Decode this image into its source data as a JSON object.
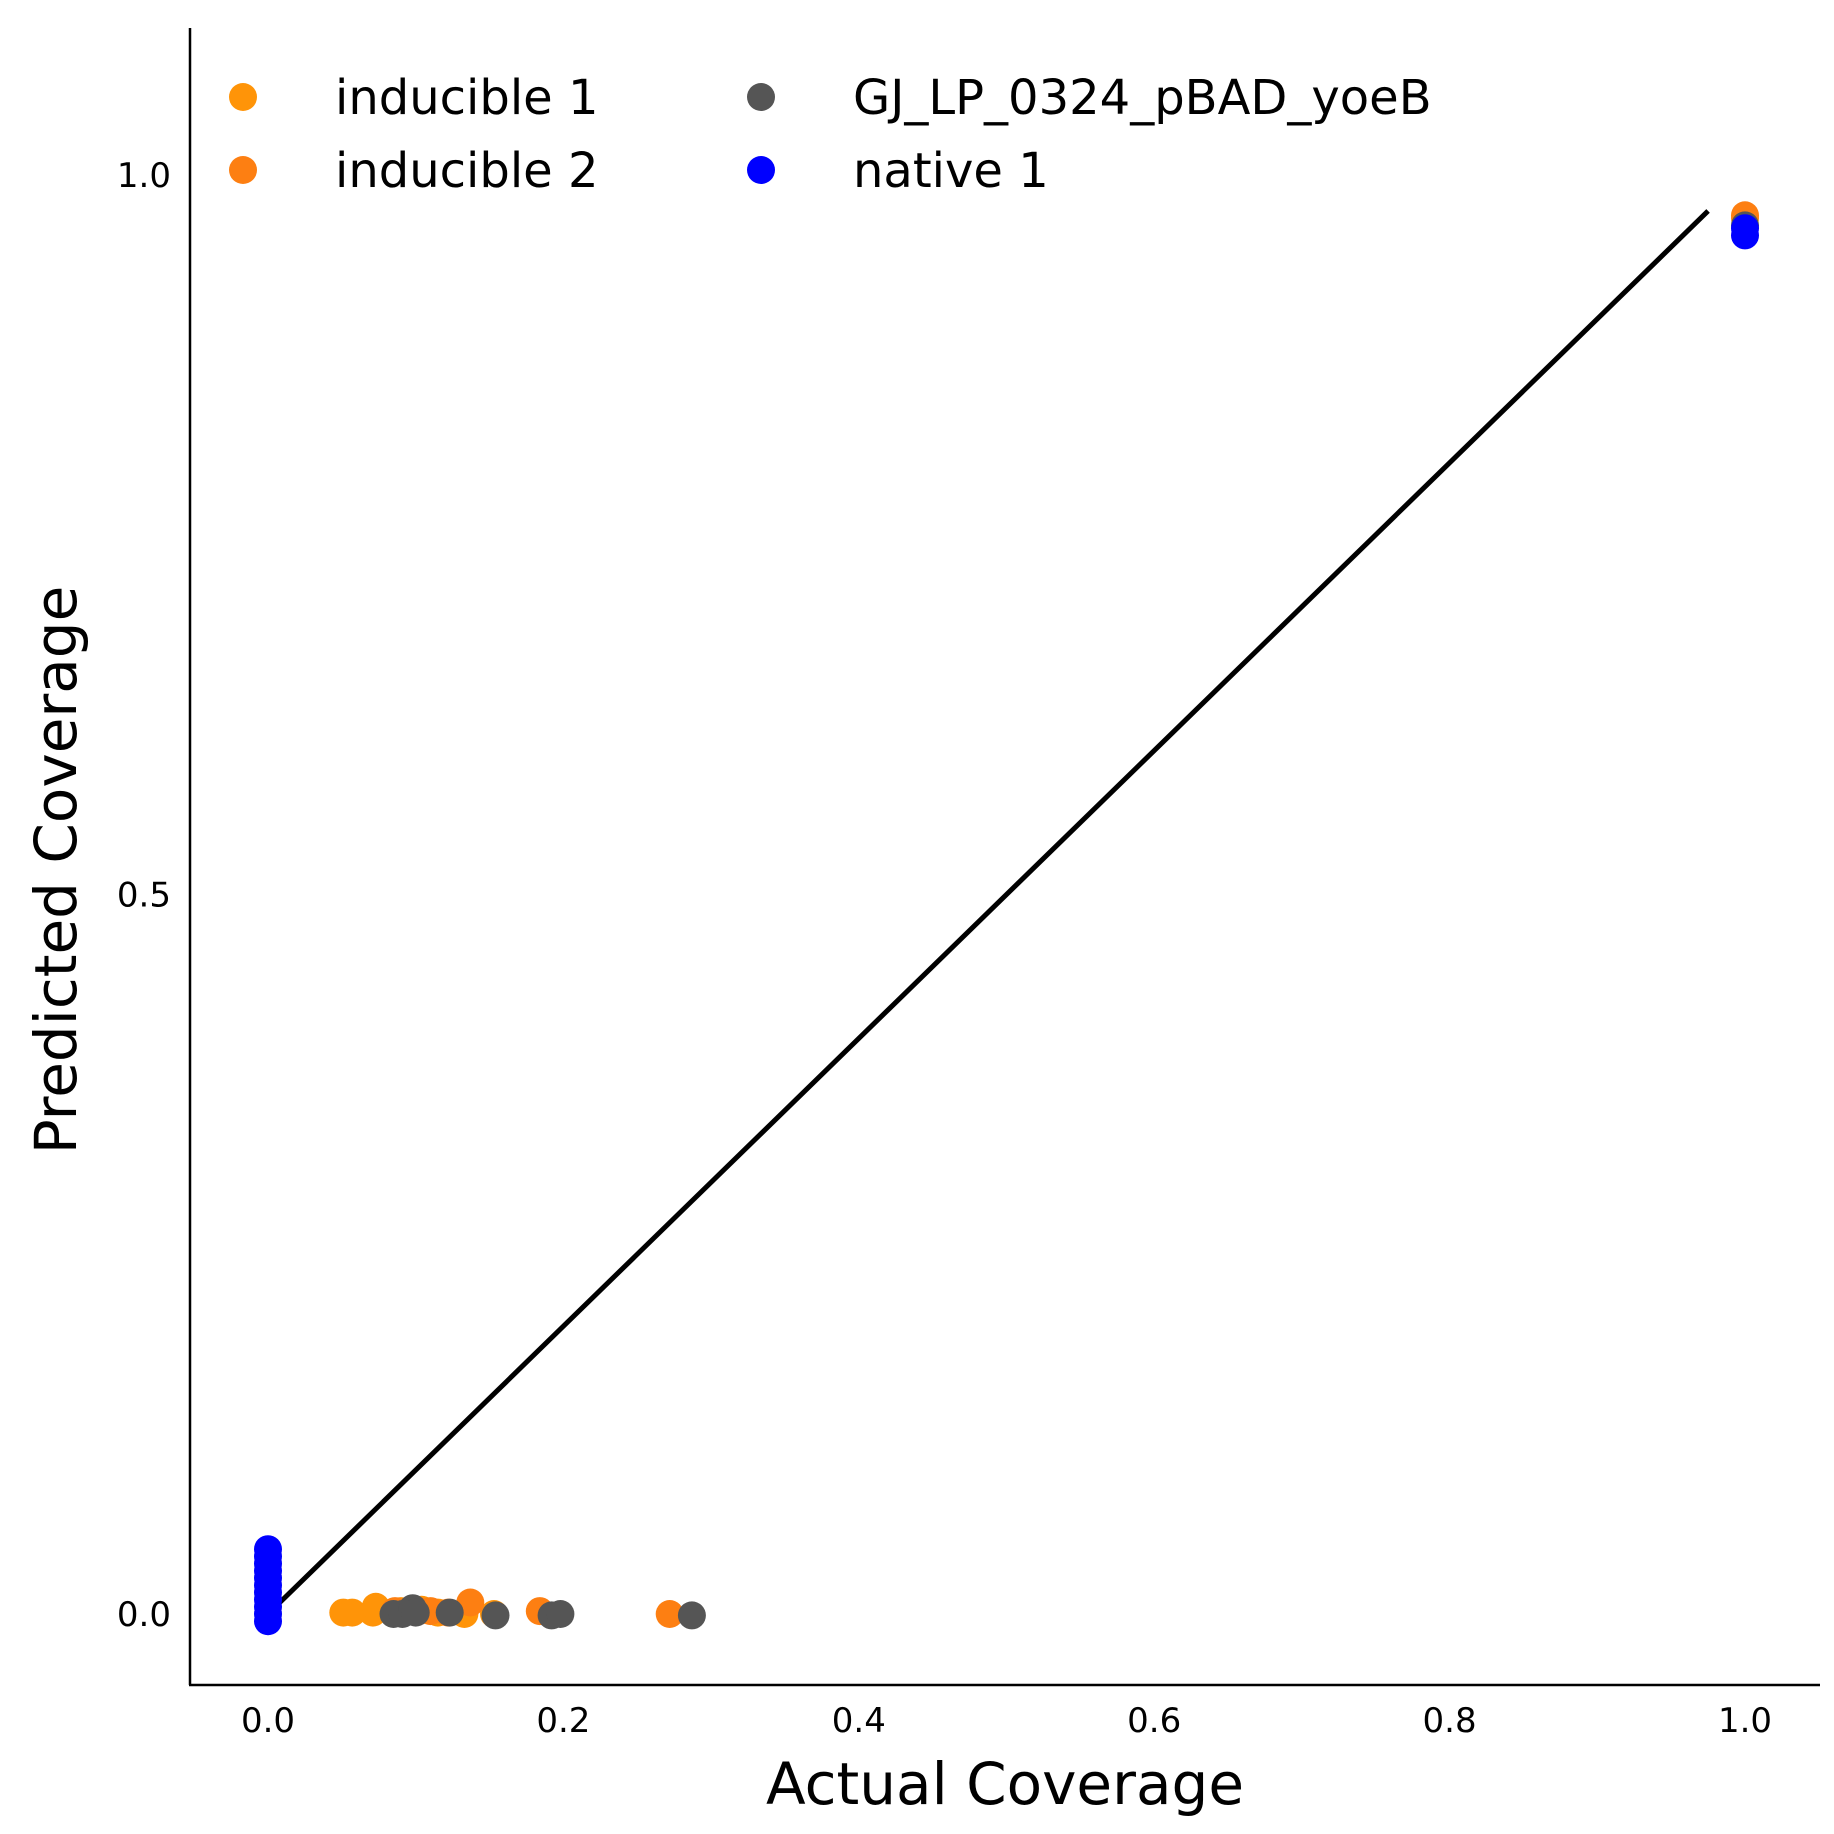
{
  "chart_data": {
    "type": "scatter",
    "xlabel": "Actual Coverage",
    "ylabel": "Predicted Coverage",
    "xlim": [
      -0.053,
      1.05
    ],
    "ylim": [
      -0.05,
      1.1
    ],
    "xticks": [
      {
        "value": 0.0,
        "label": "0.0"
      },
      {
        "value": 0.2,
        "label": "0.2"
      },
      {
        "value": 0.4,
        "label": "0.4"
      },
      {
        "value": 0.6,
        "label": "0.6"
      },
      {
        "value": 0.8,
        "label": "0.8"
      },
      {
        "value": 1.0,
        "label": "1.0"
      }
    ],
    "yticks": [
      {
        "value": 0.0,
        "label": "0.0"
      },
      {
        "value": 0.5,
        "label": "0.5"
      },
      {
        "value": 1.0,
        "label": "1.0"
      }
    ],
    "grid": false,
    "legend_position": "top-left",
    "identity_line": {
      "from": [
        0.0,
        0.0
      ],
      "to": [
        0.975,
        0.975
      ],
      "color": "#000000"
    },
    "series": [
      {
        "name": "inducible 1",
        "color": "#ff9408",
        "points": [
          [
            0.051,
            0.001
          ],
          [
            0.057,
            0.001
          ],
          [
            0.071,
            0.001
          ],
          [
            0.073,
            0.005
          ],
          [
            0.09,
            0.002
          ],
          [
            0.104,
            0.003
          ],
          [
            0.115,
            0.001
          ],
          [
            0.133,
            0.0
          ],
          [
            0.153,
            0.0
          ],
          [
            1.0,
            0.97
          ]
        ]
      },
      {
        "name": "inducible 2",
        "color": "#fd7f12",
        "points": [
          [
            0.086,
            0.002
          ],
          [
            0.092,
            0.001
          ],
          [
            0.102,
            0.002
          ],
          [
            0.11,
            0.002
          ],
          [
            0.122,
            0.001
          ],
          [
            0.137,
            0.008
          ],
          [
            0.184,
            0.002
          ],
          [
            0.272,
            0.0
          ],
          [
            1.0,
            0.972
          ]
        ]
      },
      {
        "name": "GJ_LP_0324_pBAD_yoeB",
        "color": "#555555",
        "points": [
          [
            0.085,
            0.0
          ],
          [
            0.091,
            0.0
          ],
          [
            0.098,
            0.004
          ],
          [
            0.1,
            0.001
          ],
          [
            0.123,
            0.001
          ],
          [
            0.154,
            -0.001
          ],
          [
            0.192,
            -0.001
          ],
          [
            0.198,
            0.0
          ],
          [
            0.287,
            -0.001
          ],
          [
            1.0,
            0.965
          ]
        ]
      },
      {
        "name": "native 1",
        "color": "#0000ff",
        "points": [
          [
            0.0,
            -0.005
          ],
          [
            0.0,
            0.0
          ],
          [
            0.0,
            0.005
          ],
          [
            0.0,
            0.01
          ],
          [
            0.0,
            0.015
          ],
          [
            0.0,
            0.02
          ],
          [
            0.0,
            0.025
          ],
          [
            0.0,
            0.03
          ],
          [
            0.0,
            0.035
          ],
          [
            0.0,
            0.04
          ],
          [
            0.0,
            0.045
          ],
          [
            1.0,
            0.958
          ],
          [
            1.0,
            0.963
          ]
        ]
      }
    ]
  }
}
